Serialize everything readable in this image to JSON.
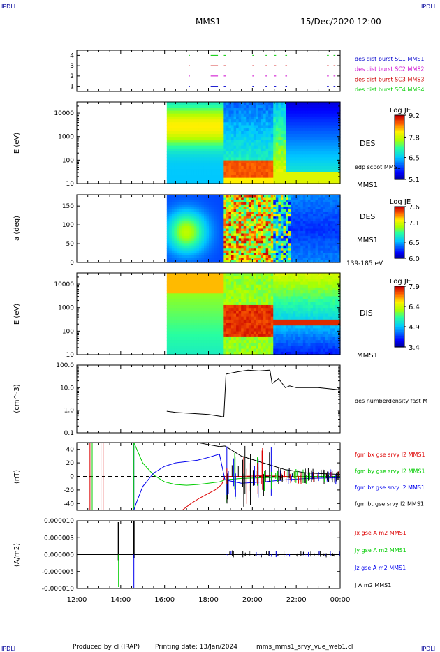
{
  "header": {
    "corner_left": "IPDLI",
    "corner_right": "IPDLI",
    "mission": "MMS1",
    "date": "15/Dec/2020 12:00"
  },
  "footer": {
    "produced": "Produced by cl (IRAP)",
    "printing": "Printing date: 13/Jan/2024",
    "file": "mms_mms1_srvy_vue_web1.cl",
    "corner_left": "IPDLI",
    "corner_right": "IPDLI"
  },
  "time_axis": {
    "ticks": [
      "12:00",
      "14:00",
      "16:00",
      "18:00",
      "20:00",
      "22:00",
      "00:00"
    ],
    "hours": [
      12,
      14,
      16,
      18,
      20,
      22,
      24
    ]
  },
  "colors": {
    "sc1": "#0000cc",
    "sc2": "#cc00cc",
    "sc3": "#cc0000",
    "sc4": "#00cc00",
    "bx": "#dd0000",
    "by": "#00cc00",
    "bz": "#0000ee",
    "bt": "#000000"
  },
  "chart_data": [
    {
      "id": "burst",
      "type": "scatter",
      "ylim": [
        0.5,
        4.5
      ],
      "ticks": [
        "1",
        "2",
        "3",
        "4"
      ],
      "legend": [
        {
          "label": "des dist burst SC1 MMS1",
          "color": "#0000cc"
        },
        {
          "label": "des dist burst SC2 MMS2",
          "color": "#cc00cc"
        },
        {
          "label": "des dist burst SC3 MMS3",
          "color": "#cc0000"
        },
        {
          "label": "des dist burst SC4 MMS4",
          "color": "#00cc00"
        }
      ],
      "intervals_hours": [
        [
          17.1,
          17.12
        ],
        [
          18.1,
          18.4
        ],
        [
          18.7,
          18.76
        ],
        [
          20.0,
          20.05
        ],
        [
          20.6,
          20.65
        ],
        [
          21.0,
          21.05
        ],
        [
          21.5,
          21.55
        ],
        [
          23.4,
          23.45
        ],
        [
          23.7,
          23.75
        ]
      ]
    },
    {
      "id": "des_energy",
      "type": "heatmap",
      "ylabel": "E (eV)",
      "scale": "log",
      "ylim": [
        10,
        30000
      ],
      "ticks": [
        "10",
        "100",
        "1000",
        "10000"
      ],
      "colorbar": {
        "title": "Log JE",
        "ticks": [
          "9.2",
          "7.8",
          "6.5",
          "5.1"
        ],
        "range": [
          5.1,
          9.2
        ]
      },
      "label": "DES",
      "annotations": [
        "edp scpot MMS1",
        "MMS1"
      ]
    },
    {
      "id": "des_pitch",
      "type": "heatmap",
      "ylabel": "a (deg)",
      "ylim": [
        0,
        180
      ],
      "ticks": [
        "0",
        "50",
        "100",
        "150"
      ],
      "colorbar": {
        "title": "Log JE",
        "ticks": [
          "7.6",
          "7.1",
          "6.5",
          "6.0"
        ],
        "range": [
          6.0,
          7.6
        ]
      },
      "label": "DES",
      "annotations": [
        "MMS1",
        "139-185 eV"
      ]
    },
    {
      "id": "dis_energy",
      "type": "heatmap",
      "ylabel": "E (eV)",
      "scale": "log",
      "ylim": [
        10,
        30000
      ],
      "ticks": [
        "10",
        "100",
        "1000",
        "10000"
      ],
      "colorbar": {
        "title": "Log JE",
        "ticks": [
          "7.9",
          "6.4",
          "4.9",
          "3.4"
        ],
        "range": [
          3.4,
          7.9
        ]
      },
      "label": "DIS",
      "annotations": [
        "MMS1"
      ]
    },
    {
      "id": "density",
      "type": "line",
      "ylabel": "(cm^-3)",
      "scale": "log",
      "ylim": [
        0.1,
        100
      ],
      "ticks": [
        "0.1",
        "1.0",
        "10.0",
        "100.0"
      ],
      "legend": [
        {
          "label": "des numberdensity fast M",
          "color": "#000000"
        }
      ],
      "series": [
        {
          "x": [
            16.1,
            16.5,
            17.0,
            17.5,
            18.0,
            18.5,
            18.7,
            18.8,
            19.3,
            19.8,
            20.3,
            20.8,
            20.9,
            21.2,
            21.5,
            21.7,
            22.0,
            23.0,
            24.0
          ],
          "y": [
            0.9,
            0.8,
            0.75,
            0.7,
            0.65,
            0.55,
            0.5,
            40,
            50,
            60,
            55,
            60,
            15,
            25,
            10,
            12,
            10,
            10,
            8
          ]
        }
      ]
    },
    {
      "id": "magnetic",
      "type": "line",
      "ylabel": "(nT)",
      "ylim": [
        -50,
        50
      ],
      "ticks": [
        "-40",
        "-20",
        "0",
        "20",
        "40"
      ],
      "legend": [
        {
          "label": "fgm bx gse srvy l2 MMS1",
          "color": "#dd0000"
        },
        {
          "label": "fgm by gse srvy l2 MMS1",
          "color": "#00cc00"
        },
        {
          "label": "fgm bz gse srvy l2 MMS1",
          "color": "#0000ee"
        },
        {
          "label": "fgm bt gse srvy l2 MMS1",
          "color": "#000000"
        }
      ],
      "series": [
        {
          "x": [
            16.8,
            17.2,
            17.6,
            18.0,
            18.3,
            18.6,
            18.75,
            19.5,
            20.5,
            21.5,
            22.5,
            24
          ],
          "y": [
            -50,
            -40,
            -32,
            -25,
            -20,
            -12,
            0,
            0,
            1,
            0,
            0,
            0
          ]
        },
        {
          "x": [
            14.6,
            15.0,
            15.5,
            16.0,
            16.5,
            17.0,
            17.5,
            18.0,
            18.5,
            18.75,
            19.5,
            20.5,
            21.5,
            22.5,
            24
          ],
          "y": [
            50,
            20,
            2,
            -8,
            -12,
            -13,
            -12,
            -10,
            -8,
            -5,
            -3,
            -2,
            -1,
            0,
            0
          ]
        },
        {
          "x": [
            14.6,
            14.7,
            15.0,
            15.5,
            16.0,
            16.5,
            17.0,
            17.5,
            18.0,
            18.5,
            18.75,
            19.5,
            20.5,
            21.5,
            22.5,
            24
          ],
          "y": [
            -50,
            -40,
            -15,
            5,
            15,
            20,
            22,
            24,
            28,
            33,
            -5,
            -10,
            -8,
            -5,
            -3,
            -2
          ]
        },
        {
          "x": [
            17.5,
            18.0,
            18.5,
            18.75,
            19.5,
            20.5,
            21.5,
            22.5,
            24
          ],
          "y": [
            50,
            47,
            44,
            45,
            30,
            20,
            10,
            5,
            3
          ]
        }
      ]
    },
    {
      "id": "current",
      "type": "line",
      "ylabel": "(A/m2)",
      "ylim": [
        -0.0001,
        0.0001
      ],
      "ticks": [
        "-0.000010",
        "-0.000005",
        "0.000000",
        "0.000005",
        "0.000010"
      ],
      "legend": [
        {
          "label": "Jx gse A m2 MMS1",
          "color": "#dd0000"
        },
        {
          "label": "Jy gse A m2 MMS1",
          "color": "#00cc00"
        },
        {
          "label": "Jz gse A m2 MMS1",
          "color": "#0000ee"
        },
        {
          "label": "J A m2 MMS1",
          "color": "#000000"
        }
      ]
    }
  ]
}
